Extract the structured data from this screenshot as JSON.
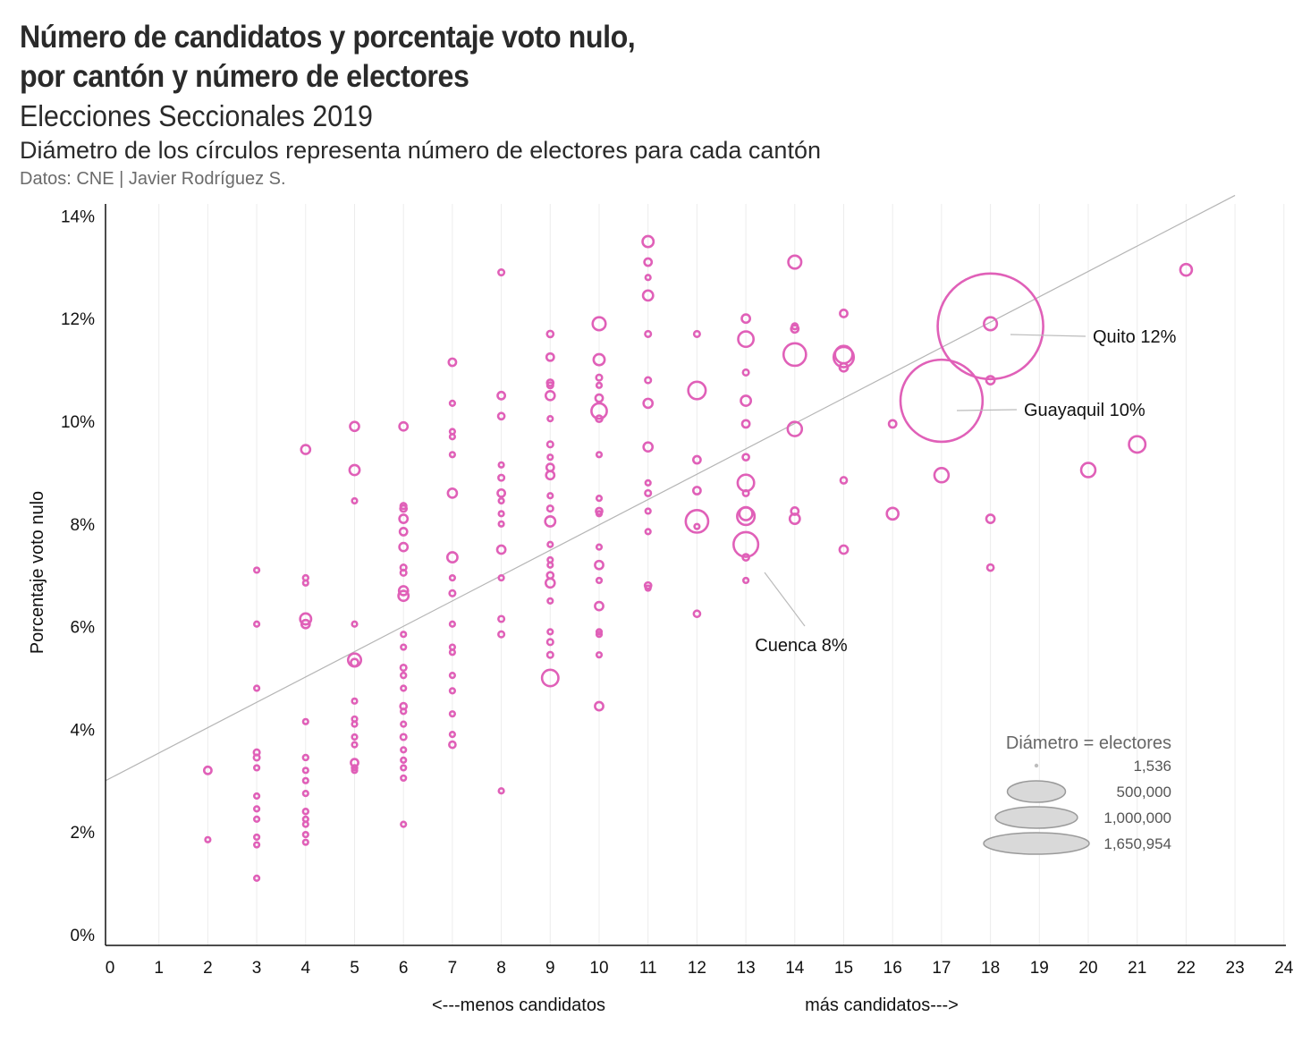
{
  "header": {
    "title_line1": "Número de candidatos y porcentaje voto nulo,",
    "title_line2": "por cantón y número de electores",
    "subtitle": "Elecciones Seccionales 2019",
    "description": "Diámetro de los círculos representa número de electores para cada cantón",
    "source": "Datos: CNE | Javier Rodríguez S."
  },
  "chart_data": {
    "type": "scatter",
    "title": "Número de candidatos y porcentaje voto nulo, por cantón y número de electores",
    "xlabel_left": "<---menos candidatos",
    "xlabel_right": "más candidatos--->",
    "ylabel": "Porcentaje voto nulo",
    "xlim": [
      0,
      24
    ],
    "ylim": [
      0,
      14
    ],
    "x_ticks": [
      "0",
      "1",
      "2",
      "3",
      "4",
      "5",
      "6",
      "7",
      "8",
      "9",
      "10",
      "11",
      "12",
      "13",
      "14",
      "15",
      "16",
      "17",
      "18",
      "19",
      "20",
      "21",
      "22",
      "23",
      "24"
    ],
    "y_ticks": [
      "0%",
      "2%",
      "4%",
      "6%",
      "8%",
      "10%",
      "12%",
      "14%"
    ],
    "colors": {
      "bubble": "#e060b8",
      "trend": "#b5b5b5",
      "legend_fill": "#d9d9d9",
      "legend_stroke": "#9a9a9a"
    },
    "trendline": {
      "x": [
        0,
        23
      ],
      "y": [
        3.0,
        14.4
      ]
    },
    "size_unit": "electores",
    "points": [
      {
        "x": 2,
        "y": 3.2,
        "s": 8000
      },
      {
        "x": 2,
        "y": 1.85,
        "s": 2000
      },
      {
        "x": 3,
        "y": 7.1,
        "s": 2500
      },
      {
        "x": 3,
        "y": 6.05,
        "s": 2500
      },
      {
        "x": 3,
        "y": 4.8,
        "s": 2500
      },
      {
        "x": 3,
        "y": 3.55,
        "s": 5000
      },
      {
        "x": 3,
        "y": 3.45,
        "s": 5000
      },
      {
        "x": 3,
        "y": 3.25,
        "s": 3000
      },
      {
        "x": 3,
        "y": 2.7,
        "s": 2000
      },
      {
        "x": 3,
        "y": 2.45,
        "s": 2500
      },
      {
        "x": 3,
        "y": 2.25,
        "s": 2500
      },
      {
        "x": 3,
        "y": 1.9,
        "s": 2500
      },
      {
        "x": 3,
        "y": 1.75,
        "s": 2000
      },
      {
        "x": 3,
        "y": 1.1,
        "s": 2000
      },
      {
        "x": 4,
        "y": 9.45,
        "s": 12000
      },
      {
        "x": 4,
        "y": 6.95,
        "s": 4000
      },
      {
        "x": 4,
        "y": 6.85,
        "s": 3000
      },
      {
        "x": 4,
        "y": 6.15,
        "s": 18000
      },
      {
        "x": 4,
        "y": 6.05,
        "s": 10000
      },
      {
        "x": 4,
        "y": 4.15,
        "s": 3000
      },
      {
        "x": 4,
        "y": 3.45,
        "s": 4000
      },
      {
        "x": 4,
        "y": 3.2,
        "s": 3500
      },
      {
        "x": 4,
        "y": 3.0,
        "s": 3000
      },
      {
        "x": 4,
        "y": 2.75,
        "s": 3000
      },
      {
        "x": 4,
        "y": 2.4,
        "s": 4000
      },
      {
        "x": 4,
        "y": 2.25,
        "s": 3500
      },
      {
        "x": 4,
        "y": 2.15,
        "s": 3000
      },
      {
        "x": 4,
        "y": 1.95,
        "s": 3000
      },
      {
        "x": 4,
        "y": 1.8,
        "s": 2000
      },
      {
        "x": 5,
        "y": 9.9,
        "s": 12000
      },
      {
        "x": 5,
        "y": 9.05,
        "s": 15000
      },
      {
        "x": 5,
        "y": 8.45,
        "s": 3000
      },
      {
        "x": 5,
        "y": 6.05,
        "s": 2500
      },
      {
        "x": 5,
        "y": 5.35,
        "s": 25000
      },
      {
        "x": 5,
        "y": 5.3,
        "s": 8000
      },
      {
        "x": 5,
        "y": 4.55,
        "s": 2500
      },
      {
        "x": 5,
        "y": 4.2,
        "s": 3000
      },
      {
        "x": 5,
        "y": 4.1,
        "s": 3000
      },
      {
        "x": 5,
        "y": 3.85,
        "s": 3500
      },
      {
        "x": 5,
        "y": 3.7,
        "s": 3000
      },
      {
        "x": 5,
        "y": 3.35,
        "s": 8000
      },
      {
        "x": 5,
        "y": 3.25,
        "s": 4000
      },
      {
        "x": 5,
        "y": 3.2,
        "s": 3000
      },
      {
        "x": 6,
        "y": 9.9,
        "s": 10000
      },
      {
        "x": 6,
        "y": 8.35,
        "s": 5000
      },
      {
        "x": 6,
        "y": 8.3,
        "s": 6000
      },
      {
        "x": 6,
        "y": 8.1,
        "s": 10000
      },
      {
        "x": 6,
        "y": 7.85,
        "s": 8000
      },
      {
        "x": 6,
        "y": 7.55,
        "s": 10000
      },
      {
        "x": 6,
        "y": 7.15,
        "s": 5000
      },
      {
        "x": 6,
        "y": 7.05,
        "s": 5000
      },
      {
        "x": 6,
        "y": 6.7,
        "s": 12000
      },
      {
        "x": 6,
        "y": 6.6,
        "s": 15000
      },
      {
        "x": 6,
        "y": 5.85,
        "s": 3000
      },
      {
        "x": 6,
        "y": 5.6,
        "s": 3000
      },
      {
        "x": 6,
        "y": 5.2,
        "s": 5000
      },
      {
        "x": 6,
        "y": 5.05,
        "s": 4000
      },
      {
        "x": 6,
        "y": 4.8,
        "s": 3000
      },
      {
        "x": 6,
        "y": 4.45,
        "s": 6000
      },
      {
        "x": 6,
        "y": 4.35,
        "s": 4000
      },
      {
        "x": 6,
        "y": 4.1,
        "s": 3000
      },
      {
        "x": 6,
        "y": 3.85,
        "s": 5000
      },
      {
        "x": 6,
        "y": 3.6,
        "s": 3000
      },
      {
        "x": 6,
        "y": 3.4,
        "s": 3000
      },
      {
        "x": 6,
        "y": 3.25,
        "s": 3000
      },
      {
        "x": 6,
        "y": 3.05,
        "s": 3000
      },
      {
        "x": 6,
        "y": 2.15,
        "s": 2500
      },
      {
        "x": 7,
        "y": 11.15,
        "s": 8000
      },
      {
        "x": 7,
        "y": 10.35,
        "s": 3000
      },
      {
        "x": 7,
        "y": 9.8,
        "s": 3000
      },
      {
        "x": 7,
        "y": 9.7,
        "s": 3000
      },
      {
        "x": 7,
        "y": 9.35,
        "s": 2500
      },
      {
        "x": 7,
        "y": 8.6,
        "s": 12000
      },
      {
        "x": 7,
        "y": 7.35,
        "s": 15000
      },
      {
        "x": 7,
        "y": 6.95,
        "s": 3000
      },
      {
        "x": 7,
        "y": 6.65,
        "s": 5000
      },
      {
        "x": 7,
        "y": 6.05,
        "s": 2500
      },
      {
        "x": 7,
        "y": 5.6,
        "s": 2500
      },
      {
        "x": 7,
        "y": 5.5,
        "s": 3000
      },
      {
        "x": 7,
        "y": 5.05,
        "s": 2500
      },
      {
        "x": 7,
        "y": 4.75,
        "s": 2000
      },
      {
        "x": 7,
        "y": 4.3,
        "s": 3000
      },
      {
        "x": 7,
        "y": 3.9,
        "s": 2500
      },
      {
        "x": 7,
        "y": 3.7,
        "s": 6000
      },
      {
        "x": 8,
        "y": 12.9,
        "s": 5000
      },
      {
        "x": 8,
        "y": 10.5,
        "s": 8000
      },
      {
        "x": 8,
        "y": 10.1,
        "s": 6000
      },
      {
        "x": 8,
        "y": 9.15,
        "s": 3000
      },
      {
        "x": 8,
        "y": 8.9,
        "s": 5000
      },
      {
        "x": 8,
        "y": 8.6,
        "s": 8000
      },
      {
        "x": 8,
        "y": 8.45,
        "s": 3000
      },
      {
        "x": 8,
        "y": 8.2,
        "s": 3500
      },
      {
        "x": 8,
        "y": 8.0,
        "s": 3000
      },
      {
        "x": 8,
        "y": 7.5,
        "s": 10000
      },
      {
        "x": 8,
        "y": 6.95,
        "s": 2500
      },
      {
        "x": 8,
        "y": 6.15,
        "s": 5000
      },
      {
        "x": 8,
        "y": 5.85,
        "s": 5000
      },
      {
        "x": 8,
        "y": 2.8,
        "s": 2500
      },
      {
        "x": 9,
        "y": 11.7,
        "s": 6000
      },
      {
        "x": 9,
        "y": 11.25,
        "s": 8000
      },
      {
        "x": 9,
        "y": 10.75,
        "s": 6000
      },
      {
        "x": 9,
        "y": 10.7,
        "s": 5000
      },
      {
        "x": 9,
        "y": 10.5,
        "s": 12000
      },
      {
        "x": 9,
        "y": 10.05,
        "s": 3000
      },
      {
        "x": 9,
        "y": 9.55,
        "s": 5000
      },
      {
        "x": 9,
        "y": 9.3,
        "s": 3000
      },
      {
        "x": 9,
        "y": 9.1,
        "s": 8000
      },
      {
        "x": 9,
        "y": 8.95,
        "s": 10000
      },
      {
        "x": 9,
        "y": 8.55,
        "s": 3000
      },
      {
        "x": 9,
        "y": 8.3,
        "s": 5000
      },
      {
        "x": 9,
        "y": 8.05,
        "s": 15000
      },
      {
        "x": 9,
        "y": 7.6,
        "s": 3000
      },
      {
        "x": 9,
        "y": 7.3,
        "s": 3000
      },
      {
        "x": 9,
        "y": 7.2,
        "s": 3000
      },
      {
        "x": 9,
        "y": 7.0,
        "s": 6000
      },
      {
        "x": 9,
        "y": 6.85,
        "s": 12000
      },
      {
        "x": 9,
        "y": 6.5,
        "s": 2500
      },
      {
        "x": 9,
        "y": 5.9,
        "s": 2500
      },
      {
        "x": 9,
        "y": 5.7,
        "s": 5000
      },
      {
        "x": 9,
        "y": 5.45,
        "s": 5000
      },
      {
        "x": 9,
        "y": 5.0,
        "s": 40000
      },
      {
        "x": 10,
        "y": 11.9,
        "s": 25000
      },
      {
        "x": 10,
        "y": 11.2,
        "s": 18000
      },
      {
        "x": 10,
        "y": 10.85,
        "s": 5000
      },
      {
        "x": 10,
        "y": 10.7,
        "s": 3000
      },
      {
        "x": 10,
        "y": 10.45,
        "s": 8000
      },
      {
        "x": 10,
        "y": 10.2,
        "s": 35000
      },
      {
        "x": 10,
        "y": 10.05,
        "s": 6000
      },
      {
        "x": 10,
        "y": 9.35,
        "s": 3000
      },
      {
        "x": 10,
        "y": 8.5,
        "s": 3000
      },
      {
        "x": 10,
        "y": 8.25,
        "s": 6000
      },
      {
        "x": 10,
        "y": 8.2,
        "s": 3000
      },
      {
        "x": 10,
        "y": 7.55,
        "s": 3000
      },
      {
        "x": 10,
        "y": 7.2,
        "s": 10000
      },
      {
        "x": 10,
        "y": 6.9,
        "s": 3000
      },
      {
        "x": 10,
        "y": 6.4,
        "s": 10000
      },
      {
        "x": 10,
        "y": 5.9,
        "s": 3000
      },
      {
        "x": 10,
        "y": 5.85,
        "s": 2500
      },
      {
        "x": 10,
        "y": 5.45,
        "s": 3000
      },
      {
        "x": 10,
        "y": 4.45,
        "s": 10000
      },
      {
        "x": 11,
        "y": 13.5,
        "s": 18000
      },
      {
        "x": 11,
        "y": 13.1,
        "s": 8000
      },
      {
        "x": 11,
        "y": 12.8,
        "s": 3000
      },
      {
        "x": 11,
        "y": 12.45,
        "s": 15000
      },
      {
        "x": 11,
        "y": 11.7,
        "s": 5000
      },
      {
        "x": 11,
        "y": 10.8,
        "s": 5000
      },
      {
        "x": 11,
        "y": 10.35,
        "s": 12000
      },
      {
        "x": 11,
        "y": 9.5,
        "s": 12000
      },
      {
        "x": 11,
        "y": 8.8,
        "s": 2000
      },
      {
        "x": 11,
        "y": 8.6,
        "s": 5000
      },
      {
        "x": 11,
        "y": 8.25,
        "s": 3000
      },
      {
        "x": 11,
        "y": 7.85,
        "s": 3000
      },
      {
        "x": 11,
        "y": 6.8,
        "s": 6000
      },
      {
        "x": 11,
        "y": 6.75,
        "s": 3000
      },
      {
        "x": 12,
        "y": 11.7,
        "s": 5000
      },
      {
        "x": 12,
        "y": 10.6,
        "s": 45000
      },
      {
        "x": 12,
        "y": 9.25,
        "s": 8000
      },
      {
        "x": 12,
        "y": 8.65,
        "s": 8000
      },
      {
        "x": 12,
        "y": 8.05,
        "s": 75000
      },
      {
        "x": 12,
        "y": 7.95,
        "s": 3000
      },
      {
        "x": 12,
        "y": 6.25,
        "s": 6000
      },
      {
        "x": 13,
        "y": 12.0,
        "s": 10000
      },
      {
        "x": 13,
        "y": 11.6,
        "s": 35000
      },
      {
        "x": 13,
        "y": 10.95,
        "s": 5000
      },
      {
        "x": 13,
        "y": 10.4,
        "s": 15000
      },
      {
        "x": 13,
        "y": 9.95,
        "s": 8000
      },
      {
        "x": 13,
        "y": 9.3,
        "s": 6000
      },
      {
        "x": 13,
        "y": 8.8,
        "s": 40000
      },
      {
        "x": 13,
        "y": 8.6,
        "s": 5000
      },
      {
        "x": 13,
        "y": 8.2,
        "s": 25000
      },
      {
        "x": 13,
        "y": 8.15,
        "s": 45000
      },
      {
        "x": 13,
        "y": 7.6,
        "s": 90000
      },
      {
        "x": 13,
        "y": 7.35,
        "s": 6000
      },
      {
        "x": 13,
        "y": 6.9,
        "s": 3000
      },
      {
        "x": 14,
        "y": 13.1,
        "s": 25000
      },
      {
        "x": 14,
        "y": 11.85,
        "s": 5000
      },
      {
        "x": 14,
        "y": 11.8,
        "s": 8000
      },
      {
        "x": 14,
        "y": 11.3,
        "s": 75000
      },
      {
        "x": 14,
        "y": 9.85,
        "s": 30000
      },
      {
        "x": 14,
        "y": 8.25,
        "s": 8000
      },
      {
        "x": 14,
        "y": 8.1,
        "s": 15000
      },
      {
        "x": 15,
        "y": 12.1,
        "s": 8000
      },
      {
        "x": 15,
        "y": 11.3,
        "s": 45000
      },
      {
        "x": 15,
        "y": 11.25,
        "s": 60000
      },
      {
        "x": 15,
        "y": 11.05,
        "s": 10000
      },
      {
        "x": 15,
        "y": 8.85,
        "s": 6000
      },
      {
        "x": 15,
        "y": 7.5,
        "s": 10000
      },
      {
        "x": 16,
        "y": 9.95,
        "s": 8000
      },
      {
        "x": 16,
        "y": 8.2,
        "s": 20000
      },
      {
        "x": 17,
        "y": 10.4,
        "s": 1000000
      },
      {
        "x": 17,
        "y": 8.95,
        "s": 30000
      },
      {
        "x": 18,
        "y": 11.85,
        "s": 1650954
      },
      {
        "x": 18,
        "y": 11.9,
        "s": 25000
      },
      {
        "x": 18,
        "y": 10.8,
        "s": 10000
      },
      {
        "x": 18,
        "y": 8.1,
        "s": 10000
      },
      {
        "x": 18,
        "y": 7.15,
        "s": 6000
      },
      {
        "x": 20,
        "y": 9.05,
        "s": 30000
      },
      {
        "x": 21,
        "y": 9.55,
        "s": 40000
      },
      {
        "x": 22,
        "y": 12.95,
        "s": 20000
      }
    ],
    "annotations": [
      {
        "label": "Quito 12%",
        "x": 18,
        "y": 11.85
      },
      {
        "label": "Guayaquil 10%",
        "x": 17,
        "y": 10.4
      },
      {
        "label": "Cuenca 8%",
        "x": 13,
        "y": 7.6
      }
    ],
    "legend": {
      "title": "Diámetro = electores",
      "items": [
        {
          "label": "1,536",
          "value": 1536
        },
        {
          "label": "500,000",
          "value": 500000
        },
        {
          "label": "1,000,000",
          "value": 1000000
        },
        {
          "label": "1,650,954",
          "value": 1650954
        }
      ]
    }
  }
}
